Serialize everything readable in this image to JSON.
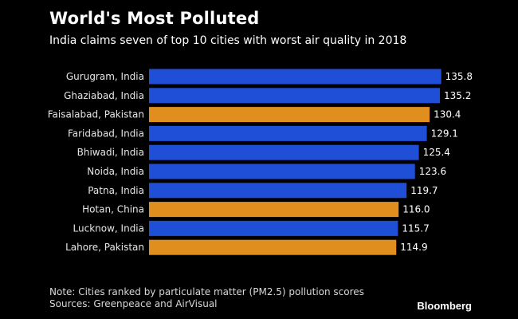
{
  "header": {
    "title": "World's Most Polluted",
    "subtitle": "India claims seven of top 10 cities with worst air quality in 2018"
  },
  "footer": {
    "note": "Note: Cities ranked by particulate matter (PM2.5) pollution scores",
    "sources": "Sources: Greenpeace and AirVisual",
    "brand": "Bloomberg"
  },
  "colors": {
    "india": "#1f4fd6",
    "other": "#e08e1e",
    "background": "#000000"
  },
  "chart_data": {
    "type": "bar",
    "orientation": "horizontal",
    "title": "World's Most Polluted",
    "subtitle": "India claims seven of top 10 cities with worst air quality in 2018",
    "xlabel": "",
    "ylabel": "",
    "xlim": [
      0,
      140
    ],
    "categories": [
      "Gurugram, India",
      "Ghaziabad, India",
      "Faisalabad, Pakistan",
      "Faridabad, India",
      "Bhiwadi, India",
      "Noida, India",
      "Patna, India",
      "Hotan, China",
      "Lucknow, India",
      "Lahore, Pakistan"
    ],
    "values": [
      135.8,
      135.2,
      130.4,
      129.1,
      125.4,
      123.6,
      119.7,
      116.0,
      115.7,
      114.9
    ],
    "value_labels": [
      "135.8",
      "135.2",
      "130.4",
      "129.1",
      "125.4",
      "123.6",
      "119.7",
      "116.0",
      "115.7",
      "114.9"
    ],
    "groups": [
      "india",
      "india",
      "other",
      "india",
      "india",
      "india",
      "india",
      "other",
      "india",
      "other"
    ]
  }
}
